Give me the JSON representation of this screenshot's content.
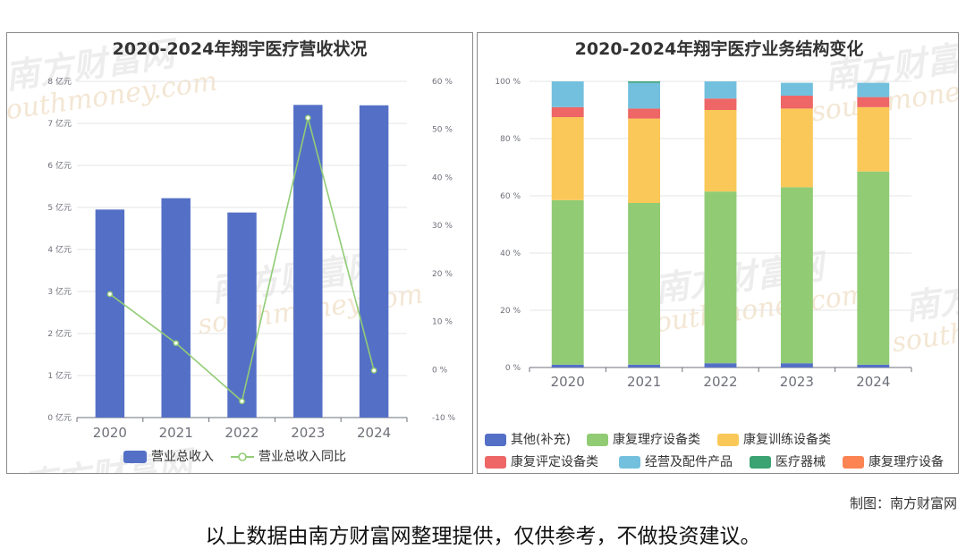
{
  "footer": {
    "credit": "制图：南方财富网",
    "disclaimer": "以上数据由南方财富网整理提供，仅供参考，不做投资建议。"
  },
  "watermark": {
    "cn": "南方财富网",
    "en": "southmoney.com"
  },
  "chart_data": [
    {
      "type": "bar",
      "title": "2020-2024年翔宇医疗营收状况",
      "categories": [
        "2020",
        "2021",
        "2022",
        "2023",
        "2024"
      ],
      "y_ticks": [
        "0 亿元",
        "1 亿元",
        "2 亿元",
        "3 亿元",
        "4 亿元",
        "5 亿元",
        "6 亿元",
        "7 亿元",
        "8 亿元"
      ],
      "y2_ticks": [
        "-10 %",
        "0 %",
        "10 %",
        "20 %",
        "30 %",
        "40 %",
        "50 %",
        "60 %"
      ],
      "ylim": [
        0,
        8
      ],
      "y2lim": [
        -10,
        60
      ],
      "series": [
        {
          "name": "营业总收入",
          "type": "bar",
          "axis": "left",
          "color": "#5470c6",
          "values": [
            4.95,
            5.22,
            4.88,
            7.44,
            7.43
          ]
        },
        {
          "name": "营业总收入同比",
          "type": "line",
          "axis": "right",
          "color": "#91cc75",
          "values": [
            15.7,
            5.5,
            -6.6,
            52.4,
            -0.2
          ]
        }
      ],
      "legend_position": "bottom",
      "grid": true
    },
    {
      "type": "bar",
      "stacked": true,
      "title": "2020-2024年翔宇医疗业务结构变化",
      "categories": [
        "2020",
        "2021",
        "2022",
        "2023",
        "2024"
      ],
      "y_ticks": [
        "0 %",
        "20 %",
        "40 %",
        "60 %",
        "80 %",
        "100 %"
      ],
      "ylim": [
        0,
        100
      ],
      "series": [
        {
          "name": "其他(补充)",
          "color": "#5470c6",
          "values": [
            1.0,
            1.0,
            1.5,
            1.5,
            1.0
          ]
        },
        {
          "name": "康复理疗设备类",
          "color": "#91cc75",
          "values": [
            57.5,
            56.5,
            60.0,
            61.5,
            67.5
          ]
        },
        {
          "name": "康复训练设备类",
          "color": "#fac858",
          "values": [
            29.0,
            29.5,
            28.5,
            27.5,
            22.5
          ]
        },
        {
          "name": "康复评定设备类",
          "color": "#ee6666",
          "values": [
            3.5,
            3.5,
            4.0,
            4.5,
            3.5
          ]
        },
        {
          "name": "经营及配件产品",
          "color": "#73c0de",
          "values": [
            9.0,
            9.0,
            6.0,
            4.5,
            5.0
          ]
        },
        {
          "name": "医疗器械",
          "color": "#3ba272",
          "values": [
            0,
            0.5,
            0,
            0,
            0
          ]
        },
        {
          "name": "康复理疗设备",
          "color": "#fc8452",
          "values": [
            0,
            0,
            0,
            0,
            0
          ]
        }
      ],
      "legend_position": "bottom",
      "grid": true
    }
  ]
}
